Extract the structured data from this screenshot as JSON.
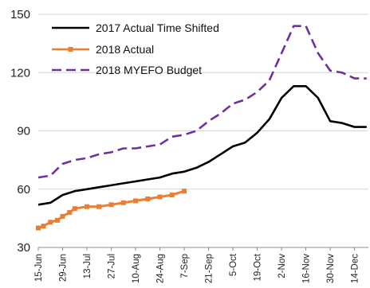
{
  "chart_data": {
    "type": "line",
    "title": "",
    "xlabel": "",
    "ylabel": "",
    "ylim": [
      30,
      150
    ],
    "yticks": [
      30,
      60,
      90,
      120,
      150
    ],
    "x_tick_labels": [
      "15-Jun",
      "29-Jun",
      "13-Jul",
      "27-Jul",
      "10-Aug",
      "24-Aug",
      "7-Sep",
      "21-Sep",
      "5-Oct",
      "19-Oct",
      "2-Nov",
      "16-Nov",
      "30-Nov",
      "14-Dec"
    ],
    "grid": "horizontal",
    "legend_position": "top-left",
    "series": [
      {
        "name": "2017 Actual Time Shifted",
        "color": "#000000",
        "style": "solid",
        "x": [
          "2018-06-15",
          "2018-06-22",
          "2018-06-29",
          "2018-07-06",
          "2018-07-13",
          "2018-07-20",
          "2018-07-27",
          "2018-08-03",
          "2018-08-10",
          "2018-08-17",
          "2018-08-24",
          "2018-08-31",
          "2018-09-07",
          "2018-09-14",
          "2018-09-21",
          "2018-09-28",
          "2018-10-05",
          "2018-10-12",
          "2018-10-19",
          "2018-10-26",
          "2018-11-02",
          "2018-11-09",
          "2018-11-16",
          "2018-11-23",
          "2018-11-30",
          "2018-12-07",
          "2018-12-14",
          "2018-12-21"
        ],
        "values": [
          52,
          53,
          57,
          59,
          60,
          61,
          62,
          63,
          64,
          65,
          66,
          68,
          69,
          71,
          74,
          78,
          82,
          84,
          89,
          96,
          107,
          113,
          113,
          107,
          95,
          94,
          92,
          92
        ]
      },
      {
        "name": "2018 Actual",
        "color": "#ED7D31",
        "style": "solid-square-markers",
        "x": [
          "2018-06-15",
          "2018-06-18",
          "2018-06-22",
          "2018-06-26",
          "2018-06-29",
          "2018-07-03",
          "2018-07-06",
          "2018-07-13",
          "2018-07-20",
          "2018-07-27",
          "2018-08-03",
          "2018-08-10",
          "2018-08-17",
          "2018-08-24",
          "2018-08-31",
          "2018-09-07"
        ],
        "values": [
          40,
          41,
          43,
          44,
          46,
          48,
          50,
          51,
          51,
          52,
          53,
          54,
          55,
          56,
          57,
          59
        ]
      },
      {
        "name": "2018 MYEFO Budget",
        "color": "#7030A0",
        "style": "dashed",
        "x": [
          "2018-06-15",
          "2018-06-22",
          "2018-06-29",
          "2018-07-06",
          "2018-07-13",
          "2018-07-20",
          "2018-07-27",
          "2018-08-03",
          "2018-08-10",
          "2018-08-17",
          "2018-08-24",
          "2018-08-31",
          "2018-09-07",
          "2018-09-14",
          "2018-09-21",
          "2018-09-28",
          "2018-10-05",
          "2018-10-12",
          "2018-10-19",
          "2018-10-26",
          "2018-11-02",
          "2018-11-09",
          "2018-11-16",
          "2018-11-23",
          "2018-11-30",
          "2018-12-07",
          "2018-12-14",
          "2018-12-21"
        ],
        "values": [
          66,
          67,
          73,
          75,
          76,
          78,
          79,
          81,
          81,
          82,
          83,
          87,
          88,
          90,
          95,
          99,
          104,
          106,
          110,
          116,
          130,
          144,
          144,
          130,
          121,
          120,
          117,
          117
        ]
      }
    ]
  }
}
